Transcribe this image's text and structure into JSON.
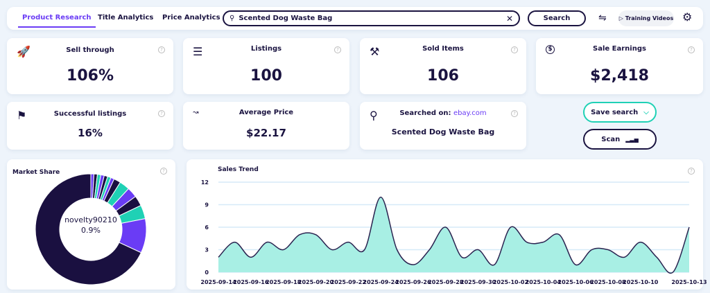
{
  "nav": {
    "tabs": [
      {
        "label": "Product Research",
        "active": true
      },
      {
        "label": "Title Analytics"
      },
      {
        "label": "Price Analytics"
      }
    ],
    "search_value": "Scented Dog Waste Bag",
    "search_button": "Search",
    "training_videos": "Training Videos"
  },
  "stats": {
    "sell_through": {
      "title": "Sell through",
      "value": "106%"
    },
    "listings": {
      "title": "Listings",
      "value": "100"
    },
    "sold_items": {
      "title": "Sold Items",
      "value": "106"
    },
    "sale_earnings": {
      "title": "Sale Earnings",
      "value": "$2,418"
    },
    "successful": {
      "title": "Successful listings",
      "value": "16%"
    },
    "avg_price": {
      "title": "Average Price",
      "value": "$22.17"
    },
    "searched": {
      "title": "Searched on:",
      "site": "ebay.com",
      "value": "Scented Dog Waste Bag"
    }
  },
  "actions": {
    "save_search": "Save search",
    "scan": "Scan"
  },
  "colors": {
    "accent": "#6a3cf5",
    "teal": "#1fd1b5",
    "dark": "#1a1040",
    "area": "#a8efe4"
  },
  "chart_data": [
    {
      "type": "pie",
      "title": "Market Share",
      "center_label": "novelty90210",
      "center_value": "0.9%",
      "values": [
        0.9,
        1,
        1,
        1,
        1,
        1,
        1,
        2,
        3,
        3,
        3,
        4,
        10,
        68
      ],
      "colors": [
        "#6a3cf5",
        "#1a1040",
        "#1fd1b5",
        "#6a3cf5",
        "#1a1040",
        "#1fd1b5",
        "#6a3cf5",
        "#1a1040",
        "#1fd1b5",
        "#6a3cf5",
        "#1a1040",
        "#1fd1b5",
        "#6a3cf5",
        "#1a1040"
      ]
    },
    {
      "type": "area",
      "title": "Sales Trend",
      "ylim": [
        0,
        12
      ],
      "yticks": [
        0,
        3,
        6,
        9,
        12
      ],
      "xtick_labels": [
        "2025-09-14",
        "2025-09-16",
        "2025-09-18",
        "2025-09-20",
        "2025-09-22",
        "2025-09-24",
        "2025-09-26",
        "2025-09-28",
        "2025-09-30",
        "2025-10-02",
        "2025-10-04",
        "2025-10-06",
        "2025-10-08",
        "2025-10-10",
        "2025-10-13"
      ],
      "x_start": "2025-09-14",
      "x_end": "2025-10-13",
      "values": [
        2,
        4,
        2,
        4,
        3,
        5,
        5,
        3,
        4,
        3,
        10,
        3,
        1,
        3,
        6,
        2,
        3,
        1,
        6,
        4,
        4,
        5,
        1,
        3,
        3,
        2,
        4,
        2,
        0,
        6
      ],
      "grid": true
    }
  ]
}
